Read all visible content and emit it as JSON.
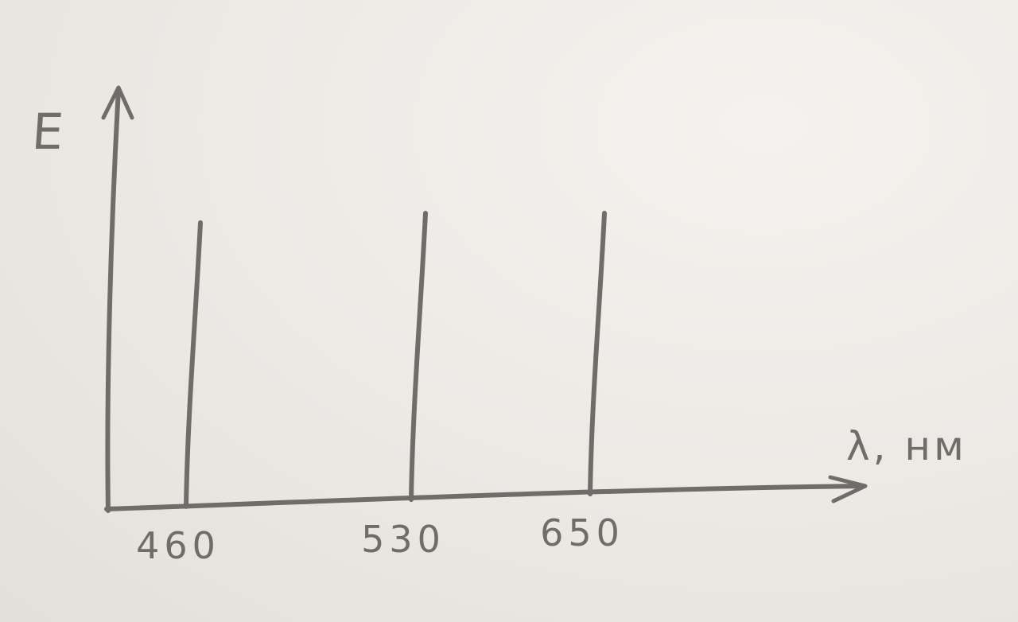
{
  "chart_data": {
    "type": "bar",
    "title": "",
    "xlabel": "λ, нм",
    "ylabel": "E",
    "x": [
      460,
      530,
      650
    ],
    "tick_labels": [
      "460",
      "530",
      "650"
    ],
    "values": [
      1,
      1,
      1
    ],
    "grid": false,
    "legend": "none"
  },
  "colors": {
    "pencil": "#6f6d6a",
    "paper": "#ebe9e4"
  }
}
